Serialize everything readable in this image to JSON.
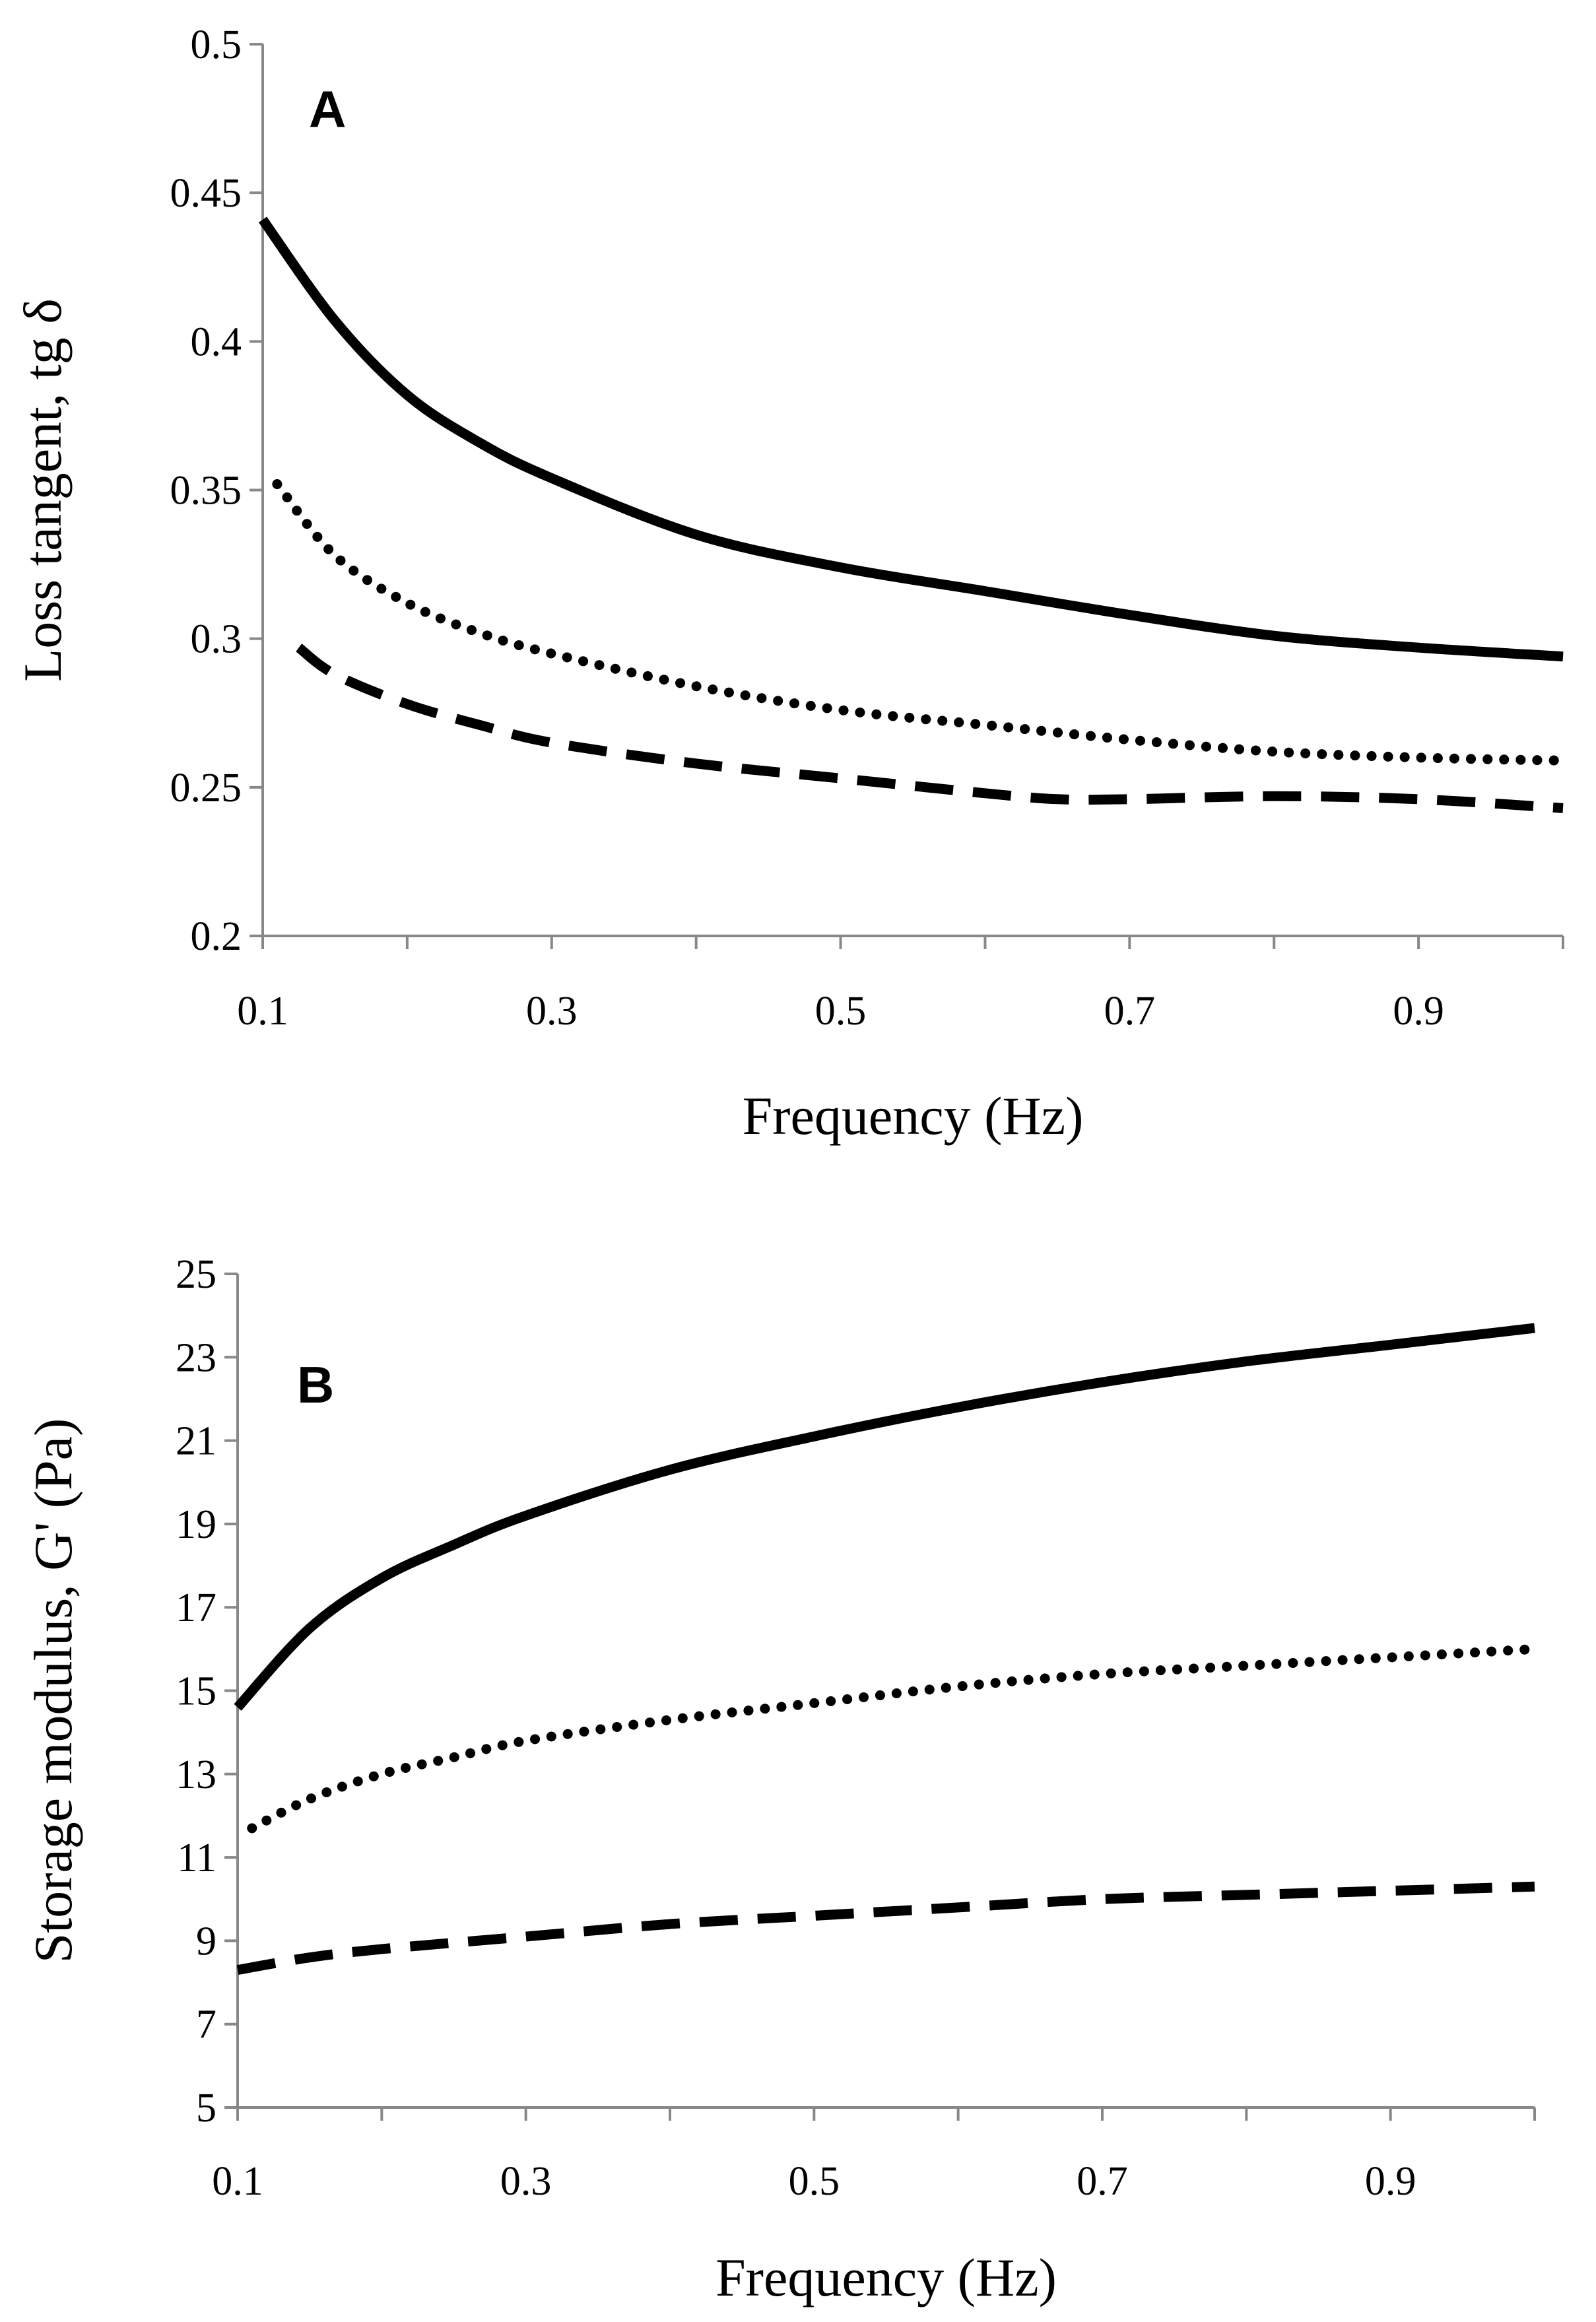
{
  "chart_data": [
    {
      "type": "line",
      "panel_label": "A",
      "xlabel": "Frequency (Hz)",
      "ylabel": "Loss tangent, tg δ",
      "xlim": [
        0.1,
        1.0
      ],
      "ylim": [
        0.2,
        0.5
      ],
      "x_ticks": [
        "0.1",
        "0.3",
        "0.5",
        "0.7",
        "0.9"
      ],
      "y_ticks": [
        "0.2",
        "0.25",
        "0.3",
        "0.35",
        "0.4",
        "0.45",
        "0.5"
      ],
      "series": [
        {
          "name": "solid",
          "style": "solid",
          "x": [
            0.1,
            0.15,
            0.2,
            0.25,
            0.3,
            0.4,
            0.5,
            0.6,
            0.7,
            0.8,
            0.9,
            1.0
          ],
          "y": [
            0.441,
            0.407,
            0.382,
            0.366,
            0.354,
            0.335,
            0.324,
            0.316,
            0.308,
            0.301,
            0.297,
            0.294
          ]
        },
        {
          "name": "dotted",
          "style": "dotted",
          "x": [
            0.11,
            0.15,
            0.2,
            0.25,
            0.3,
            0.4,
            0.5,
            0.6,
            0.7,
            0.8,
            0.9,
            1.0
          ],
          "y": [
            0.352,
            0.328,
            0.312,
            0.302,
            0.295,
            0.284,
            0.276,
            0.271,
            0.266,
            0.262,
            0.26,
            0.259
          ]
        },
        {
          "name": "dashed",
          "style": "dashed",
          "x": [
            0.125,
            0.15,
            0.2,
            0.25,
            0.3,
            0.4,
            0.5,
            0.6,
            0.65,
            0.7,
            0.8,
            0.9,
            1.0
          ],
          "y": [
            0.297,
            0.288,
            0.278,
            0.271,
            0.265,
            0.258,
            0.253,
            0.248,
            0.246,
            0.246,
            0.247,
            0.246,
            0.243
          ]
        }
      ]
    },
    {
      "type": "line",
      "panel_label": "B",
      "xlabel": "Frequency (Hz)",
      "ylabel": "Storage modulus, G' (Pa)",
      "xlim": [
        0.1,
        1.0
      ],
      "ylim": [
        5,
        25
      ],
      "x_ticks": [
        "0.1",
        "0.3",
        "0.5",
        "0.7",
        "0.9"
      ],
      "y_ticks": [
        "5",
        "7",
        "9",
        "11",
        "13",
        "15",
        "17",
        "19",
        "21",
        "23",
        "25"
      ],
      "series": [
        {
          "name": "solid",
          "style": "solid",
          "x": [
            0.1,
            0.15,
            0.2,
            0.25,
            0.3,
            0.4,
            0.5,
            0.6,
            0.7,
            0.8,
            0.9,
            1.0
          ],
          "y": [
            14.6,
            16.5,
            17.7,
            18.5,
            19.2,
            20.3,
            21.1,
            21.8,
            22.4,
            22.9,
            23.3,
            23.7
          ]
        },
        {
          "name": "dotted",
          "style": "dotted",
          "x": [
            0.11,
            0.15,
            0.2,
            0.25,
            0.3,
            0.4,
            0.5,
            0.6,
            0.7,
            0.8,
            0.9,
            1.0
          ],
          "y": [
            11.7,
            12.4,
            13.0,
            13.4,
            13.8,
            14.3,
            14.7,
            15.1,
            15.4,
            15.6,
            15.8,
            16.0
          ]
        },
        {
          "name": "dashed",
          "style": "dashed",
          "x": [
            0.1,
            0.15,
            0.2,
            0.3,
            0.4,
            0.5,
            0.6,
            0.7,
            0.8,
            0.9,
            1.0
          ],
          "y": [
            8.3,
            8.6,
            8.8,
            9.1,
            9.4,
            9.6,
            9.8,
            10.0,
            10.1,
            10.2,
            10.3
          ]
        }
      ]
    }
  ]
}
